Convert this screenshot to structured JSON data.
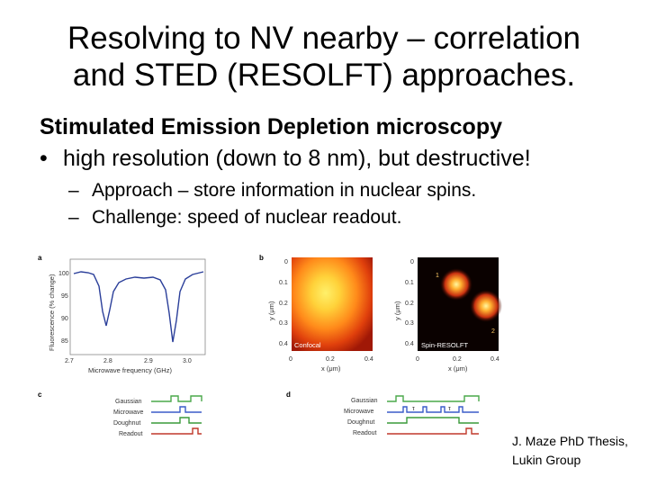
{
  "slide": {
    "title_line1": "Resolving to NV nearby – correlation",
    "title_line2": "and STED (RESOLFT) approaches.",
    "heading": "Stimulated Emission Depletion microscopy",
    "bullet_marker": "•",
    "bullet": "high resolution (down to 8 nm), but destructive!",
    "sub_marker": "–",
    "sub1": "Approach – store information in nuclear spins.",
    "sub2": "Challenge: speed of nuclear readout.",
    "credit_line1": "J. Maze PhD Thesis,",
    "credit_line2": "Lukin Group"
  },
  "figure": {
    "panel_a": {
      "label": "a",
      "ylabel": "Fluorescence (% change)",
      "xlabel": "Microwave frequency (GHz)",
      "yticks": [
        "100",
        "95",
        "90",
        "85"
      ],
      "xticks": [
        "2.7",
        "2.8",
        "2.9",
        "3.0"
      ]
    },
    "panel_b": {
      "label": "b",
      "ylabel": "y (μm)",
      "xlabel": "x (μm)",
      "left_caption": "Confocal",
      "right_caption": "Spin-RESOLFT",
      "left_yticks": [
        "0",
        "0.1",
        "0.2",
        "0.3",
        "0.4"
      ],
      "right_yticks": [
        "0",
        "0.1",
        "0.2",
        "0.3",
        "0.4"
      ],
      "xticks": [
        "0",
        "0.2",
        "0.4"
      ],
      "spot1": "1",
      "spot2": "2"
    },
    "panel_c": {
      "label": "c",
      "rows": [
        "Gaussian",
        "Microwave",
        "Doughnut",
        "Readout"
      ]
    },
    "panel_d": {
      "label": "d",
      "rows": [
        "Gaussian",
        "Microwave",
        "Doughnut",
        "Readout"
      ],
      "tau1": "τ",
      "tau2": "τ"
    },
    "colors": {
      "gaussian": "#4aa84a",
      "microwave": "#3a5cc8",
      "doughnut": "#3a9a3a",
      "readout": "#c0392b",
      "trace": "#2b3f9a"
    }
  }
}
